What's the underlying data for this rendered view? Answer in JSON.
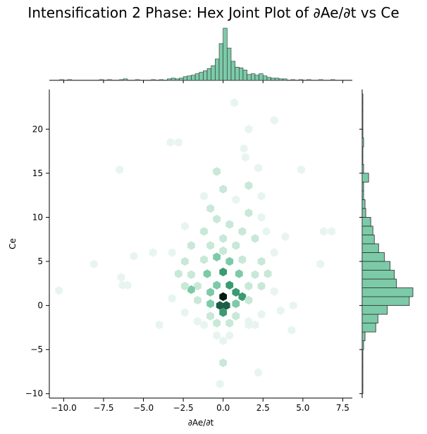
{
  "chart_data": {
    "type": "hexbin",
    "title": "Intensification 2 Phase: Hex Joint Plot of ∂Ae/∂t vs Ce",
    "xlabel": "∂Ae/∂t",
    "ylabel": "Ce",
    "xlim": [
      -10.9,
      8.1
    ],
    "ylim": [
      -10.5,
      24.5
    ],
    "xticks": [
      -10.0,
      -7.5,
      -5.0,
      -2.5,
      0.0,
      2.5,
      5.0,
      7.5
    ],
    "xtick_labels": [
      "−10.0",
      "−7.5",
      "−5.0",
      "−2.5",
      "0.0",
      "2.5",
      "5.0",
      "7.5"
    ],
    "yticks": [
      -10,
      -5,
      0,
      5,
      10,
      15,
      20
    ],
    "ytick_labels": [
      "−10",
      "−5",
      "0",
      "5",
      "10",
      "15",
      "20"
    ],
    "grid": false,
    "colors": {
      "lightest": "#e8f5ef",
      "light": "#c8e8d8",
      "mid": "#7ccaa8",
      "strong": "#3a9a72",
      "dark": "#1d5f46",
      "darkest": "#061a10",
      "hist_fill": "#7ccaa8",
      "hist_edge": "#2b2b2b"
    },
    "hexbins": [
      {
        "x": 0.0,
        "y": 1.0,
        "count": 20
      },
      {
        "x": 0.2,
        "y": 0.0,
        "count": 16
      },
      {
        "x": -0.2,
        "y": 0.0,
        "count": 14
      },
      {
        "x": 0.0,
        "y": 3.8,
        "count": 11
      },
      {
        "x": 0.0,
        "y": -0.8,
        "count": 12
      },
      {
        "x": 0.4,
        "y": 2.3,
        "count": 9
      },
      {
        "x": -0.4,
        "y": 2.3,
        "count": 8
      },
      {
        "x": 0.8,
        "y": 1.5,
        "count": 9
      },
      {
        "x": -0.8,
        "y": 1.5,
        "count": 6
      },
      {
        "x": 1.2,
        "y": 1.0,
        "count": 10
      },
      {
        "x": 0.4,
        "y": 5.0,
        "count": 7
      },
      {
        "x": -0.4,
        "y": 5.5,
        "count": 6
      },
      {
        "x": 0.0,
        "y": 6.2,
        "count": 4
      },
      {
        "x": 1.0,
        "y": 3.6,
        "count": 5
      },
      {
        "x": -1.0,
        "y": 3.6,
        "count": 5
      },
      {
        "x": 0.8,
        "y": 0.2,
        "count": 6
      },
      {
        "x": -0.8,
        "y": 0.2,
        "count": 5
      },
      {
        "x": 1.6,
        "y": 2.2,
        "count": 4
      },
      {
        "x": -1.6,
        "y": 2.2,
        "count": 4
      },
      {
        "x": -2.0,
        "y": 1.8,
        "count": 5
      },
      {
        "x": 0.0,
        "y": 7.6,
        "count": 3
      },
      {
        "x": 0.4,
        "y": 9.2,
        "count": 3
      },
      {
        "x": -0.4,
        "y": 9.8,
        "count": 3
      },
      {
        "x": 1.2,
        "y": 5.2,
        "count": 3
      },
      {
        "x": -1.2,
        "y": 5.2,
        "count": 3
      },
      {
        "x": 0.0,
        "y": -6.5,
        "count": 4
      },
      {
        "x": 0.4,
        "y": -2.0,
        "count": 3
      },
      {
        "x": -0.4,
        "y": -2.0,
        "count": 3
      },
      {
        "x": 1.6,
        "y": 0.6,
        "count": 3
      },
      {
        "x": -1.6,
        "y": 0.6,
        "count": 3
      },
      {
        "x": 2.0,
        "y": 3.5,
        "count": 2
      },
      {
        "x": -2.0,
        "y": 3.5,
        "count": 2
      },
      {
        "x": 2.4,
        "y": 5.0,
        "count": 2
      },
      {
        "x": -2.4,
        "y": 5.0,
        "count": 2
      },
      {
        "x": 0.8,
        "y": 6.8,
        "count": 2
      },
      {
        "x": -0.8,
        "y": 6.8,
        "count": 2
      },
      {
        "x": 0.8,
        "y": -1.2,
        "count": 2
      },
      {
        "x": -0.8,
        "y": -1.2,
        "count": 2
      },
      {
        "x": 1.2,
        "y": 8.4,
        "count": 2
      },
      {
        "x": -1.2,
        "y": 8.4,
        "count": 2
      },
      {
        "x": 1.6,
        "y": 10.5,
        "count": 2
      },
      {
        "x": -0.8,
        "y": 11.0,
        "count": 2
      },
      {
        "x": 2.0,
        "y": 7.6,
        "count": 2
      },
      {
        "x": -2.0,
        "y": 6.8,
        "count": 2
      },
      {
        "x": 2.4,
        "y": 2.2,
        "count": 2
      },
      {
        "x": -2.4,
        "y": 2.2,
        "count": 2
      },
      {
        "x": 2.8,
        "y": 3.6,
        "count": 2
      },
      {
        "x": -2.8,
        "y": 3.6,
        "count": 2
      },
      {
        "x": 0.0,
        "y": 13.2,
        "count": 2
      },
      {
        "x": 1.6,
        "y": 13.6,
        "count": 2
      },
      {
        "x": -0.4,
        "y": 15.2,
        "count": 2
      },
      {
        "x": 1.4,
        "y": 16.8,
        "count": 1
      },
      {
        "x": 2.2,
        "y": 15.6,
        "count": 1
      },
      {
        "x": 0.8,
        "y": 12.0,
        "count": 1
      },
      {
        "x": -1.2,
        "y": 12.4,
        "count": 1
      },
      {
        "x": 2.4,
        "y": 12.4,
        "count": 1
      },
      {
        "x": 2.4,
        "y": 10.0,
        "count": 1
      },
      {
        "x": -2.4,
        "y": 9.0,
        "count": 1
      },
      {
        "x": 3.2,
        "y": 6.0,
        "count": 1
      },
      {
        "x": -3.2,
        "y": 6.0,
        "count": 1
      },
      {
        "x": 3.2,
        "y": 1.6,
        "count": 1
      },
      {
        "x": -3.2,
        "y": 0.8,
        "count": 1
      },
      {
        "x": 1.6,
        "y": -1.8,
        "count": 1
      },
      {
        "x": -1.6,
        "y": -1.8,
        "count": 1
      },
      {
        "x": 2.4,
        "y": -1.0,
        "count": 1
      },
      {
        "x": -2.4,
        "y": -0.8,
        "count": 1
      },
      {
        "x": 2.0,
        "y": -2.2,
        "count": 1
      },
      {
        "x": -1.2,
        "y": -2.2,
        "count": 1
      },
      {
        "x": 0.4,
        "y": -3.4,
        "count": 1
      },
      {
        "x": -0.4,
        "y": -3.4,
        "count": 1
      },
      {
        "x": 0.0,
        "y": -4.0,
        "count": 1
      },
      {
        "x": 0.7,
        "y": 23.0,
        "count": 1
      },
      {
        "x": 1.6,
        "y": 20.0,
        "count": 1
      },
      {
        "x": 3.2,
        "y": 21.0,
        "count": 1
      },
      {
        "x": 1.3,
        "y": 17.8,
        "count": 1
      },
      {
        "x": -3.3,
        "y": 18.5,
        "count": 1
      },
      {
        "x": -2.8,
        "y": 18.5,
        "count": 1
      },
      {
        "x": -6.5,
        "y": 15.4,
        "count": 1
      },
      {
        "x": -4.4,
        "y": 6.0,
        "count": 1
      },
      {
        "x": -5.6,
        "y": 5.6,
        "count": 1
      },
      {
        "x": -8.1,
        "y": 4.7,
        "count": 1
      },
      {
        "x": -6.4,
        "y": 3.2,
        "count": 1
      },
      {
        "x": -6.3,
        "y": 2.3,
        "count": 1
      },
      {
        "x": -6.0,
        "y": 2.3,
        "count": 1
      },
      {
        "x": -4.0,
        "y": -2.2,
        "count": 1
      },
      {
        "x": -10.3,
        "y": 1.7,
        "count": 1
      },
      {
        "x": 2.7,
        "y": 8.4,
        "count": 1
      },
      {
        "x": 3.9,
        "y": 7.8,
        "count": 1
      },
      {
        "x": 4.9,
        "y": 15.4,
        "count": 1
      },
      {
        "x": 6.3,
        "y": 8.4,
        "count": 1
      },
      {
        "x": 6.8,
        "y": 8.4,
        "count": 1
      },
      {
        "x": 6.1,
        "y": 4.7,
        "count": 1
      },
      {
        "x": 4.4,
        "y": 0.0,
        "count": 1
      },
      {
        "x": 4.3,
        "y": -2.8,
        "count": 1
      },
      {
        "x": 2.2,
        "y": -7.6,
        "count": 1
      },
      {
        "x": -0.2,
        "y": -8.9,
        "count": 1
      },
      {
        "x": 1.6,
        "y": -2.2,
        "count": 1
      },
      {
        "x": 3.6,
        "y": -0.6,
        "count": 1
      }
    ],
    "marginal_x_hist": {
      "bin_width": 0.25,
      "bins": [
        {
          "x0": -10.25,
          "count": 1
        },
        {
          "x0": -9.75,
          "count": 1
        },
        {
          "x0": -7.75,
          "count": 1
        },
        {
          "x0": -7.25,
          "count": 1
        },
        {
          "x0": -6.5,
          "count": 1
        },
        {
          "x0": -6.25,
          "count": 2
        },
        {
          "x0": -5.5,
          "count": 1
        },
        {
          "x0": -4.5,
          "count": 1
        },
        {
          "x0": -4.0,
          "count": 1
        },
        {
          "x0": -3.5,
          "count": 2
        },
        {
          "x0": -3.25,
          "count": 3
        },
        {
          "x0": -3.0,
          "count": 2
        },
        {
          "x0": -2.75,
          "count": 3
        },
        {
          "x0": -2.5,
          "count": 5
        },
        {
          "x0": -2.25,
          "count": 6
        },
        {
          "x0": -2.0,
          "count": 7
        },
        {
          "x0": -1.75,
          "count": 9
        },
        {
          "x0": -1.5,
          "count": 11
        },
        {
          "x0": -1.25,
          "count": 13
        },
        {
          "x0": -1.0,
          "count": 16
        },
        {
          "x0": -0.75,
          "count": 20
        },
        {
          "x0": -0.5,
          "count": 29
        },
        {
          "x0": -0.25,
          "count": 50
        },
        {
          "x0": 0.0,
          "count": 71
        },
        {
          "x0": 0.25,
          "count": 44
        },
        {
          "x0": 0.5,
          "count": 26
        },
        {
          "x0": 0.75,
          "count": 18
        },
        {
          "x0": 1.0,
          "count": 17
        },
        {
          "x0": 1.25,
          "count": 14
        },
        {
          "x0": 1.5,
          "count": 8
        },
        {
          "x0": 1.75,
          "count": 9
        },
        {
          "x0": 2.0,
          "count": 7
        },
        {
          "x0": 2.25,
          "count": 9
        },
        {
          "x0": 2.5,
          "count": 6
        },
        {
          "x0": 2.75,
          "count": 4
        },
        {
          "x0": 3.0,
          "count": 3
        },
        {
          "x0": 3.25,
          "count": 3
        },
        {
          "x0": 3.5,
          "count": 2
        },
        {
          "x0": 3.75,
          "count": 2
        },
        {
          "x0": 4.25,
          "count": 1
        },
        {
          "x0": 4.75,
          "count": 1
        },
        {
          "x0": 5.25,
          "count": 1
        },
        {
          "x0": 6.0,
          "count": 1
        },
        {
          "x0": 6.75,
          "count": 1
        }
      ]
    },
    "marginal_y_hist": {
      "bin_width": 1.0,
      "bins": [
        {
          "y0": -10.0,
          "count": 1
        },
        {
          "y0": -9.0,
          "count": 1
        },
        {
          "y0": -8.0,
          "count": 1
        },
        {
          "y0": -7.0,
          "count": 1
        },
        {
          "y0": -6.0,
          "count": 1
        },
        {
          "y0": -5.0,
          "count": 2
        },
        {
          "y0": -4.0,
          "count": 4
        },
        {
          "y0": -3.0,
          "count": 19
        },
        {
          "y0": -2.0,
          "count": 22
        },
        {
          "y0": -1.0,
          "count": 35
        },
        {
          "y0": 0.0,
          "count": 66
        },
        {
          "y0": 1.0,
          "count": 71
        },
        {
          "y0": 2.0,
          "count": 48
        },
        {
          "y0": 3.0,
          "count": 45
        },
        {
          "y0": 4.0,
          "count": 39
        },
        {
          "y0": 5.0,
          "count": 31
        },
        {
          "y0": 6.0,
          "count": 23
        },
        {
          "y0": 7.0,
          "count": 17
        },
        {
          "y0": 8.0,
          "count": 15
        },
        {
          "y0": 9.0,
          "count": 12
        },
        {
          "y0": 10.0,
          "count": 5
        },
        {
          "y0": 11.0,
          "count": 4
        },
        {
          "y0": 12.0,
          "count": 2
        },
        {
          "y0": 13.0,
          "count": 2
        },
        {
          "y0": 14.0,
          "count": 9
        },
        {
          "y0": 15.0,
          "count": 2
        },
        {
          "y0": 16.0,
          "count": 1
        },
        {
          "y0": 17.0,
          "count": 1
        },
        {
          "y0": 18.0,
          "count": 2
        },
        {
          "y0": 19.0,
          "count": 1
        },
        {
          "y0": 20.0,
          "count": 1
        },
        {
          "y0": 21.0,
          "count": 1
        },
        {
          "y0": 22.0,
          "count": 1
        },
        {
          "y0": 23.0,
          "count": 1
        }
      ]
    }
  }
}
